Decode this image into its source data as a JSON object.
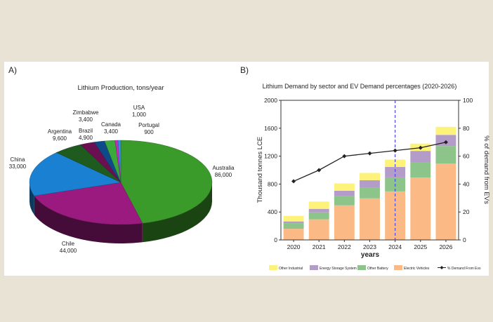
{
  "panel_a": {
    "label": "A)",
    "chart_data": {
      "type": "pie",
      "title": "Lithium Production, tons/year",
      "three_d": true,
      "slices": [
        {
          "name": "Australia",
          "value": 86000,
          "value_label": "86,000",
          "color": "#3a9a2a"
        },
        {
          "name": "Chile",
          "value": 44000,
          "value_label": "44,000",
          "color": "#9b1a7f"
        },
        {
          "name": "China",
          "value": 33000,
          "value_label": "33,000",
          "color": "#1a80d2"
        },
        {
          "name": "Argentina",
          "value": 9600,
          "value_label": "9,600",
          "color": "#1f5a1f"
        },
        {
          "name": "Brazil",
          "value": 4900,
          "value_label": "4,900",
          "color": "#6a1050"
        },
        {
          "name": "Zimbabwe",
          "value": 3400,
          "value_label": "3,400",
          "color": "#0e4a8a"
        },
        {
          "name": "Canada",
          "value": 3400,
          "value_label": "3,400",
          "color": "#3aaa3a"
        },
        {
          "name": "USA",
          "value": 1000,
          "value_label": "1,000",
          "color": "#c030b0"
        },
        {
          "name": "Portugal",
          "value": 900,
          "value_label": "900",
          "color": "#3090f0"
        }
      ]
    }
  },
  "panel_b": {
    "label": "B)",
    "chart_data": {
      "type": "bar",
      "stacked": true,
      "title": "Lithium Demand by sector and EV Demand percentages (2020-2026)",
      "xlabel": "years",
      "ylabel": "Thousand tonnes LCE",
      "y2label": "% of demand from EVs",
      "ylim": [
        0,
        2000
      ],
      "yticks": [
        0,
        400,
        800,
        1200,
        1600,
        2000
      ],
      "y2lim": [
        0,
        100
      ],
      "y2ticks": [
        0,
        20,
        40,
        60,
        80,
        100
      ],
      "categories": [
        "2020",
        "2021",
        "2022",
        "2023",
        "2024",
        "2025",
        "2026"
      ],
      "series": [
        {
          "name": "Electric Vehicles",
          "color": "#fbb985",
          "values": [
            160,
            295,
            495,
            595,
            695,
            895,
            1095
          ]
        },
        {
          "name": "Other Battery",
          "color": "#8dc48a",
          "values": [
            80,
            100,
            130,
            150,
            200,
            215,
            250
          ]
        },
        {
          "name": "Energy Storage System",
          "color": "#b49cc9",
          "values": [
            25,
            50,
            80,
            110,
            150,
            165,
            160
          ]
        },
        {
          "name": "Other Industrial",
          "color": "#fdf27a",
          "values": [
            80,
            105,
            105,
            105,
            105,
            105,
            115
          ]
        }
      ],
      "line_series": {
        "name": "% Demand From Evs",
        "axis": "right",
        "color": "#222222",
        "values": [
          42,
          50,
          60,
          62,
          64,
          66,
          70
        ]
      },
      "vertical_marker": {
        "at": "2024",
        "style": "dashed",
        "color": "#4a4ae0"
      },
      "legend_order": [
        "Other Industrial",
        "Energy Storage System",
        "Other Battery",
        "Electric Vehicles",
        "% Demand From Evs"
      ],
      "legend_placement": "bottom"
    }
  }
}
